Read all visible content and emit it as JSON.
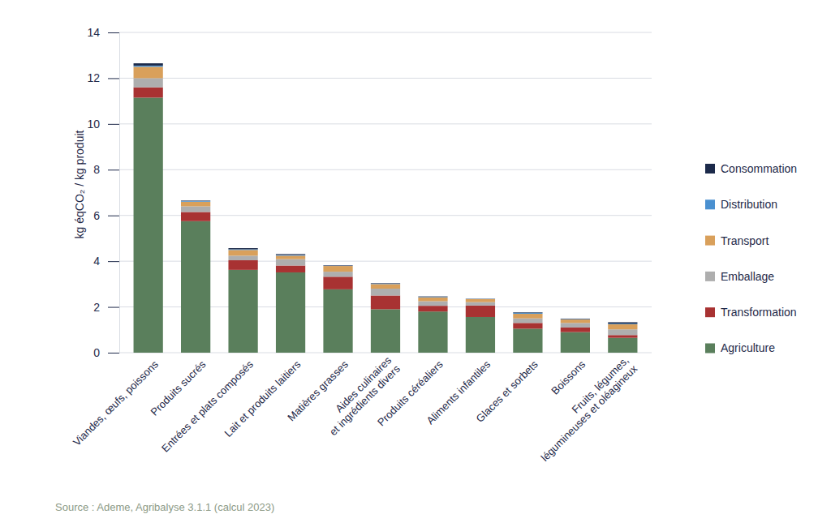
{
  "chart_data": {
    "type": "bar",
    "stacked": true,
    "grid": true,
    "legend": "right",
    "y_label": "kg éqCO₂ / kg produit",
    "source": "Source : Ademe, Agribalyse 3.1.1 (calcul 2023)",
    "categories": [
      "Viandes, œufs, poissons",
      "Produits sucrés",
      "Entrées et plats composés",
      "Lait et produits laitiers",
      "Matières grasses",
      "Aides culinaires\net ingrédients divers",
      "Produits céréaliers",
      "Aliments infantiles",
      "Glaces et sorbets",
      "Boissons",
      "Fruits, légumes,\nlégumineuses et oléagineux"
    ],
    "series": [
      {
        "name": "Agriculture",
        "color": "#5a7f5c",
        "values": [
          11.15,
          5.75,
          3.62,
          3.51,
          2.77,
          1.9,
          1.8,
          1.56,
          1.05,
          0.9,
          0.65
        ]
      },
      {
        "name": "Transformation",
        "color": "#a83232",
        "values": [
          0.45,
          0.4,
          0.42,
          0.3,
          0.55,
          0.6,
          0.25,
          0.5,
          0.25,
          0.2,
          0.12
        ]
      },
      {
        "name": "Emballage",
        "color": "#aeaeae",
        "values": [
          0.4,
          0.25,
          0.2,
          0.28,
          0.22,
          0.3,
          0.2,
          0.15,
          0.2,
          0.2,
          0.25
        ]
      },
      {
        "name": "Transport",
        "color": "#d9a05b",
        "values": [
          0.5,
          0.2,
          0.25,
          0.15,
          0.25,
          0.2,
          0.17,
          0.13,
          0.2,
          0.15,
          0.22
        ]
      },
      {
        "name": "Distribution",
        "color": "#4a90d0",
        "values": [
          0.05,
          0.03,
          0.03,
          0.03,
          0.01,
          0.02,
          0.02,
          0.01,
          0.05,
          0.02,
          0.03
        ]
      },
      {
        "name": "Consommation",
        "color": "#1c2a4a",
        "values": [
          0.1,
          0.02,
          0.05,
          0.04,
          0.02,
          0.02,
          0.02,
          0.01,
          0.02,
          0.02,
          0.06
        ]
      }
    ],
    "ylim": [
      0,
      14
    ],
    "yticks": [
      0,
      2,
      4,
      6,
      8,
      10,
      12,
      14
    ]
  }
}
